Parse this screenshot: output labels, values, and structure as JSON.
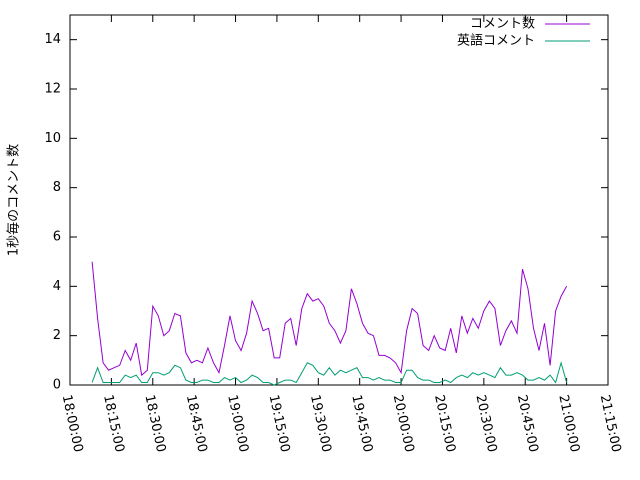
{
  "chart_data": {
    "type": "line",
    "y_label": "1秒毎のコメント数",
    "x": [
      "18:08:00",
      "18:10:00",
      "18:12:00",
      "18:14:00",
      "18:16:00",
      "18:18:00",
      "18:20:00",
      "18:22:00",
      "18:24:00",
      "18:26:00",
      "18:28:00",
      "18:30:00",
      "18:32:00",
      "18:34:00",
      "18:36:00",
      "18:38:00",
      "18:40:00",
      "18:42:00",
      "18:44:00",
      "18:46:00",
      "18:48:00",
      "18:50:00",
      "18:52:00",
      "18:54:00",
      "18:56:00",
      "18:58:00",
      "19:00:00",
      "19:02:00",
      "19:04:00",
      "19:06:00",
      "19:08:00",
      "19:10:00",
      "19:12:00",
      "19:14:00",
      "19:16:00",
      "19:18:00",
      "19:20:00",
      "19:22:00",
      "19:24:00",
      "19:26:00",
      "19:28:00",
      "19:30:00",
      "19:32:00",
      "19:34:00",
      "19:36:00",
      "19:38:00",
      "19:40:00",
      "19:42:00",
      "19:44:00",
      "19:46:00",
      "19:48:00",
      "19:50:00",
      "19:52:00",
      "19:54:00",
      "19:56:00",
      "19:58:00",
      "20:00:00",
      "20:02:00",
      "20:04:00",
      "20:06:00",
      "20:08:00",
      "20:10:00",
      "20:12:00",
      "20:14:00",
      "20:16:00",
      "20:18:00",
      "20:20:00",
      "20:22:00",
      "20:24:00",
      "20:26:00",
      "20:28:00",
      "20:30:00",
      "20:32:00",
      "20:34:00",
      "20:36:00",
      "20:38:00",
      "20:40:00",
      "20:42:00",
      "20:44:00",
      "20:46:00",
      "20:48:00",
      "20:50:00",
      "20:52:00",
      "20:54:00",
      "20:56:00",
      "20:58:00",
      "21:00:00"
    ],
    "series": [
      {
        "name": "コメント数",
        "color": "#9400d3",
        "values": [
          5.0,
          2.7,
          0.9,
          0.6,
          0.7,
          0.8,
          1.4,
          1.0,
          1.7,
          0.4,
          0.6,
          3.2,
          2.8,
          2.0,
          2.2,
          2.9,
          2.8,
          1.3,
          0.9,
          1.0,
          0.9,
          1.5,
          0.9,
          0.5,
          1.6,
          2.8,
          1.8,
          1.4,
          2.1,
          3.4,
          2.9,
          2.2,
          2.3,
          1.1,
          1.1,
          2.5,
          2.7,
          1.6,
          3.1,
          3.7,
          3.4,
          3.5,
          3.2,
          2.5,
          2.2,
          1.7,
          2.2,
          3.9,
          3.3,
          2.5,
          2.1,
          2.0,
          1.2,
          1.2,
          1.1,
          0.9,
          0.5,
          2.2,
          3.1,
          2.9,
          1.6,
          1.4,
          2.0,
          1.5,
          1.4,
          2.3,
          1.3,
          2.8,
          2.1,
          2.7,
          2.3,
          3.0,
          3.4,
          3.1,
          1.6,
          2.2,
          2.6,
          2.1,
          4.7,
          3.9,
          2.3,
          1.4,
          2.5,
          0.8,
          3.0,
          3.6,
          4.0
        ]
      },
      {
        "name": "英語コメント",
        "color": "#009e73",
        "values": [
          0.1,
          0.7,
          0.1,
          0.1,
          0.1,
          0.1,
          0.4,
          0.3,
          0.4,
          0.1,
          0.1,
          0.5,
          0.5,
          0.4,
          0.5,
          0.8,
          0.7,
          0.2,
          0.1,
          0.1,
          0.2,
          0.2,
          0.1,
          0.1,
          0.3,
          0.2,
          0.3,
          0.1,
          0.2,
          0.4,
          0.3,
          0.1,
          0.1,
          0.0,
          0.1,
          0.2,
          0.2,
          0.1,
          0.5,
          0.9,
          0.8,
          0.5,
          0.4,
          0.7,
          0.4,
          0.6,
          0.5,
          0.6,
          0.7,
          0.3,
          0.3,
          0.2,
          0.3,
          0.2,
          0.2,
          0.1,
          0.1,
          0.6,
          0.6,
          0.3,
          0.2,
          0.2,
          0.1,
          0.1,
          0.2,
          0.1,
          0.3,
          0.4,
          0.3,
          0.5,
          0.4,
          0.5,
          0.4,
          0.3,
          0.7,
          0.4,
          0.4,
          0.5,
          0.4,
          0.2,
          0.2,
          0.3,
          0.2,
          0.4,
          0.1,
          0.9,
          0.1
        ]
      }
    ],
    "xlim": [
      "18:00:00",
      "21:15:00"
    ],
    "xticks": [
      "18:00:00",
      "18:15:00",
      "18:30:00",
      "18:45:00",
      "19:00:00",
      "19:15:00",
      "19:30:00",
      "19:45:00",
      "20:00:00",
      "20:15:00",
      "20:30:00",
      "20:45:00",
      "21:00:00",
      "21:15:00"
    ],
    "ylim": [
      0,
      15
    ],
    "yticks": [
      0,
      2,
      4,
      6,
      8,
      10,
      12,
      14
    ],
    "grid": false,
    "legend": "top-right"
  }
}
